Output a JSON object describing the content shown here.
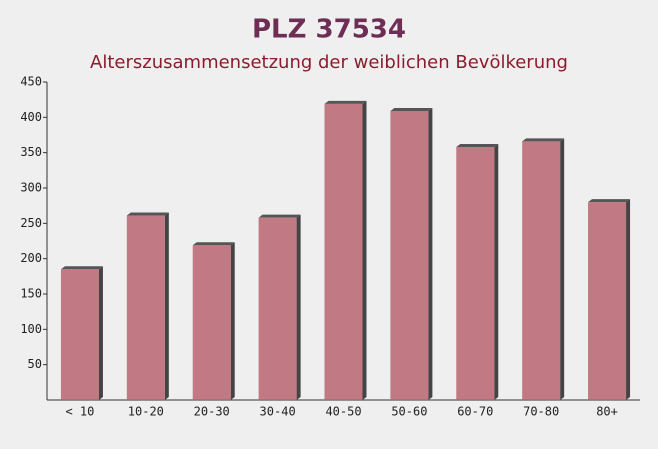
{
  "chart_data": {
    "type": "bar",
    "title": "PLZ 37534",
    "subtitle": "Alterszusammensetzung der weiblichen Bevölkerung",
    "categories": [
      "< 10",
      "10-20",
      "20-30",
      "30-40",
      "40-50",
      "50-60",
      "60-70",
      "70-80",
      "80+"
    ],
    "values": [
      185,
      261,
      219,
      258,
      419,
      409,
      358,
      366,
      280
    ],
    "color": "#b86470",
    "ylim": [
      0,
      450
    ],
    "yticks": [
      50,
      100,
      150,
      200,
      250,
      300,
      350,
      400,
      450
    ],
    "grid": false
  }
}
